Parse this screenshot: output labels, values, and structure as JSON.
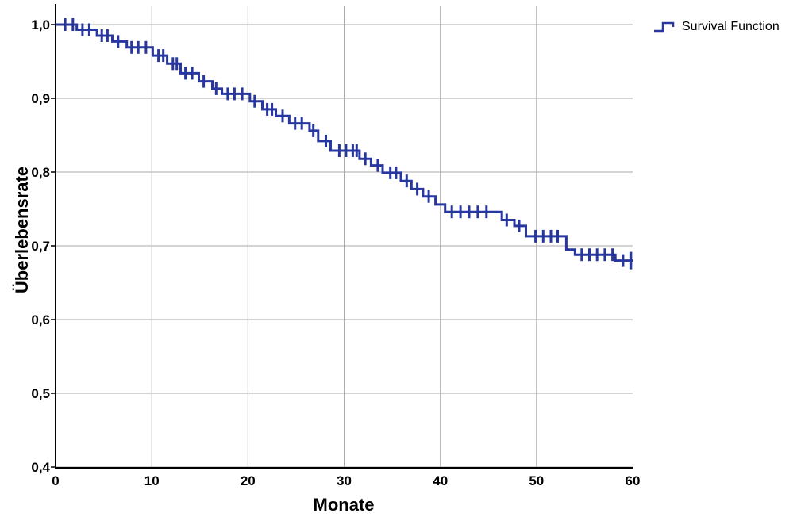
{
  "chart_data": {
    "type": "line",
    "subtype": "kaplan_meier_survival_step",
    "xlabel": "Monate",
    "ylabel": "Überlebensrate",
    "xlim": [
      0,
      60
    ],
    "ylim": [
      0.4,
      1.0
    ],
    "grid": true,
    "x_ticks": [
      {
        "value": 0,
        "label": "0"
      },
      {
        "value": 10,
        "label": "10"
      },
      {
        "value": 20,
        "label": "20"
      },
      {
        "value": 30,
        "label": "30"
      },
      {
        "value": 40,
        "label": "40"
      },
      {
        "value": 50,
        "label": "50"
      },
      {
        "value": 60,
        "label": "60"
      }
    ],
    "y_ticks": [
      {
        "value": 0.4,
        "label": "0,4"
      },
      {
        "value": 0.5,
        "label": "0,5"
      },
      {
        "value": 0.6,
        "label": "0,6"
      },
      {
        "value": 0.7,
        "label": "0,7"
      },
      {
        "value": 0.8,
        "label": "0,8"
      },
      {
        "value": 0.9,
        "label": "0,9"
      },
      {
        "value": 1.0,
        "label": "1,0"
      }
    ],
    "legend": {
      "position": "top-right",
      "label": "Survival Function"
    },
    "colors": {
      "line": "#27379f",
      "grid": "#a9a9a9",
      "axis": "#000000",
      "text": "#000000",
      "background": "#ffffff"
    },
    "series": [
      {
        "name": "Survival Function",
        "steps": [
          [
            0,
            1.0
          ],
          [
            2.2,
            0.993
          ],
          [
            4.3,
            0.985
          ],
          [
            5.9,
            0.977
          ],
          [
            7.4,
            0.969
          ],
          [
            10.1,
            0.958
          ],
          [
            11.6,
            0.947
          ],
          [
            13.0,
            0.934
          ],
          [
            14.9,
            0.923
          ],
          [
            16.3,
            0.913
          ],
          [
            17.3,
            0.906
          ],
          [
            20.2,
            0.896
          ],
          [
            21.5,
            0.885
          ],
          [
            22.9,
            0.876
          ],
          [
            24.3,
            0.866
          ],
          [
            26.4,
            0.856
          ],
          [
            27.3,
            0.842
          ],
          [
            28.6,
            0.829
          ],
          [
            31.6,
            0.818
          ],
          [
            32.8,
            0.809
          ],
          [
            34.0,
            0.799
          ],
          [
            35.9,
            0.788
          ],
          [
            37.0,
            0.777
          ],
          [
            38.2,
            0.767
          ],
          [
            39.5,
            0.756
          ],
          [
            40.5,
            0.746
          ],
          [
            46.4,
            0.735
          ],
          [
            47.7,
            0.727
          ],
          [
            48.9,
            0.713
          ],
          [
            53.1,
            0.695
          ],
          [
            54.0,
            0.688
          ],
          [
            58.2,
            0.68
          ],
          [
            60,
            0.68
          ]
        ],
        "censored": [
          [
            1.0,
            1.0
          ],
          [
            1.8,
            1.0
          ],
          [
            2.8,
            0.993
          ],
          [
            3.5,
            0.993
          ],
          [
            4.8,
            0.985
          ],
          [
            5.4,
            0.985
          ],
          [
            6.5,
            0.977
          ],
          [
            7.9,
            0.969
          ],
          [
            8.6,
            0.969
          ],
          [
            9.4,
            0.969
          ],
          [
            10.7,
            0.958
          ],
          [
            11.2,
            0.958
          ],
          [
            12.2,
            0.947
          ],
          [
            12.6,
            0.947
          ],
          [
            13.5,
            0.934
          ],
          [
            14.2,
            0.934
          ],
          [
            15.4,
            0.923
          ],
          [
            16.7,
            0.913
          ],
          [
            17.9,
            0.906
          ],
          [
            18.6,
            0.906
          ],
          [
            19.4,
            0.906
          ],
          [
            20.7,
            0.896
          ],
          [
            22.0,
            0.885
          ],
          [
            22.5,
            0.885
          ],
          [
            23.6,
            0.876
          ],
          [
            24.9,
            0.866
          ],
          [
            25.6,
            0.866
          ],
          [
            26.8,
            0.856
          ],
          [
            28.1,
            0.842
          ],
          [
            29.5,
            0.829
          ],
          [
            30.2,
            0.829
          ],
          [
            30.9,
            0.829
          ],
          [
            31.3,
            0.829
          ],
          [
            32.2,
            0.818
          ],
          [
            33.5,
            0.809
          ],
          [
            34.8,
            0.799
          ],
          [
            35.4,
            0.799
          ],
          [
            36.5,
            0.788
          ],
          [
            37.6,
            0.777
          ],
          [
            38.8,
            0.767
          ],
          [
            41.2,
            0.746
          ],
          [
            42.1,
            0.746
          ],
          [
            43.0,
            0.746
          ],
          [
            43.9,
            0.746
          ],
          [
            44.8,
            0.746
          ],
          [
            46.9,
            0.735
          ],
          [
            48.2,
            0.727
          ],
          [
            49.9,
            0.713
          ],
          [
            50.7,
            0.713
          ],
          [
            51.5,
            0.713
          ],
          [
            52.2,
            0.713
          ],
          [
            54.7,
            0.688
          ],
          [
            55.5,
            0.688
          ],
          [
            56.3,
            0.688
          ],
          [
            57.1,
            0.688
          ],
          [
            57.9,
            0.688
          ],
          [
            59.0,
            0.68
          ]
        ],
        "terminal_censor": [
          59.8,
          0.68
        ]
      }
    ]
  }
}
